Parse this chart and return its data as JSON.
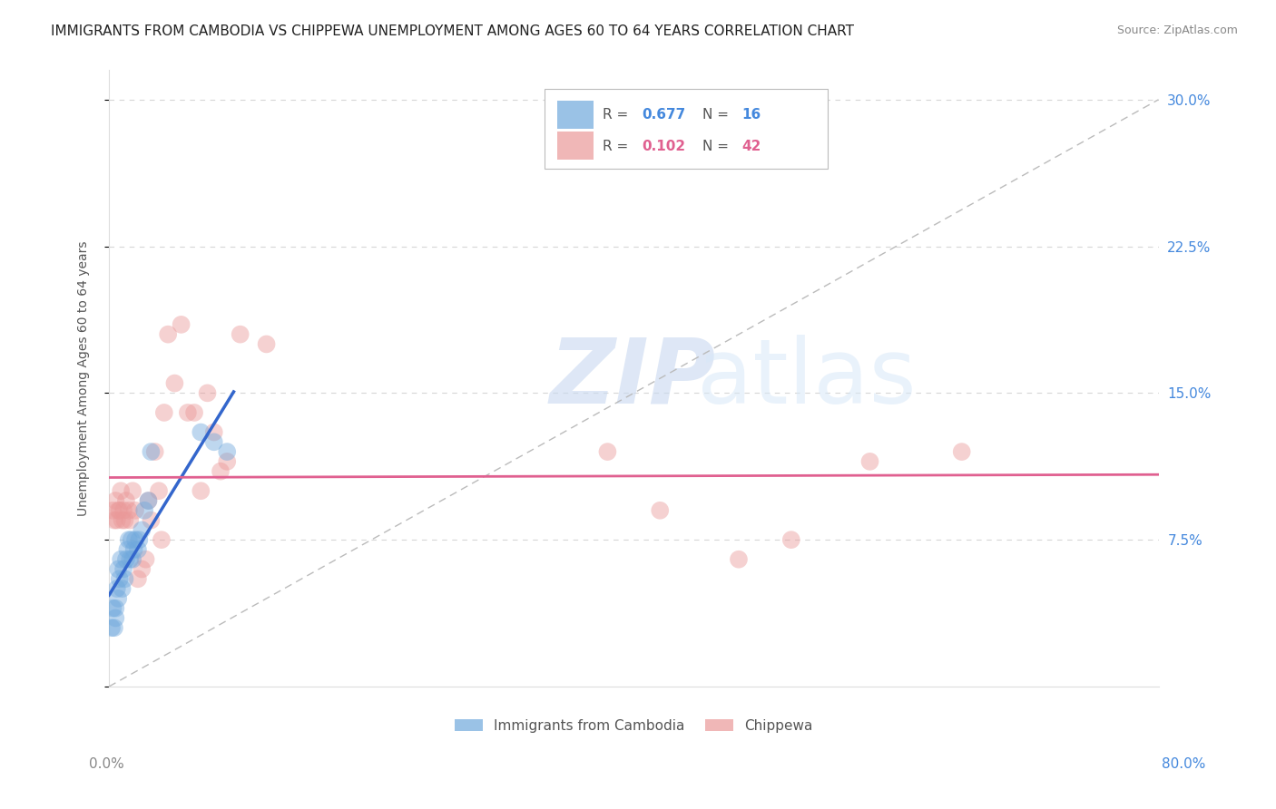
{
  "title": "IMMIGRANTS FROM CAMBODIA VS CHIPPEWA UNEMPLOYMENT AMONG AGES 60 TO 64 YEARS CORRELATION CHART",
  "source": "Source: ZipAtlas.com",
  "ylabel": "Unemployment Among Ages 60 to 64 years",
  "yticks": [
    0.0,
    0.075,
    0.15,
    0.225,
    0.3
  ],
  "ytick_labels": [
    "",
    "7.5%",
    "15.0%",
    "22.5%",
    "30.0%"
  ],
  "xlim": [
    0.0,
    0.8
  ],
  "ylim": [
    0.0,
    0.315
  ],
  "legend_label_blue": "Immigrants from Cambodia",
  "legend_label_pink": "Chippewa",
  "blue_color": "#6fa8dc",
  "pink_color": "#ea9999",
  "blue_line_color": "#3366cc",
  "pink_line_color": "#e06090",
  "watermark_zip": "ZIP",
  "watermark_atlas": "atlas",
  "blue_scatter_x": [
    0.002,
    0.003,
    0.004,
    0.005,
    0.005,
    0.006,
    0.007,
    0.007,
    0.008,
    0.009,
    0.01,
    0.011,
    0.012,
    0.013,
    0.014,
    0.015,
    0.016,
    0.017,
    0.018,
    0.019,
    0.02,
    0.022,
    0.023,
    0.025,
    0.027,
    0.03,
    0.032,
    0.07,
    0.08,
    0.09
  ],
  "blue_scatter_y": [
    0.03,
    0.04,
    0.03,
    0.035,
    0.04,
    0.05,
    0.045,
    0.06,
    0.055,
    0.065,
    0.05,
    0.06,
    0.055,
    0.065,
    0.07,
    0.075,
    0.065,
    0.075,
    0.065,
    0.07,
    0.075,
    0.07,
    0.075,
    0.08,
    0.09,
    0.095,
    0.12,
    0.13,
    0.125,
    0.12
  ],
  "pink_scatter_x": [
    0.003,
    0.004,
    0.005,
    0.006,
    0.007,
    0.008,
    0.009,
    0.01,
    0.011,
    0.012,
    0.013,
    0.015,
    0.016,
    0.018,
    0.02,
    0.022,
    0.025,
    0.028,
    0.03,
    0.032,
    0.035,
    0.038,
    0.04,
    0.042,
    0.045,
    0.05,
    0.055,
    0.06,
    0.065,
    0.07,
    0.075,
    0.08,
    0.085,
    0.09,
    0.1,
    0.12,
    0.38,
    0.42,
    0.48,
    0.52,
    0.58,
    0.65
  ],
  "pink_scatter_y": [
    0.09,
    0.085,
    0.095,
    0.085,
    0.09,
    0.09,
    0.1,
    0.085,
    0.09,
    0.085,
    0.095,
    0.09,
    0.085,
    0.1,
    0.09,
    0.055,
    0.06,
    0.065,
    0.095,
    0.085,
    0.12,
    0.1,
    0.075,
    0.14,
    0.18,
    0.155,
    0.185,
    0.14,
    0.14,
    0.1,
    0.15,
    0.13,
    0.11,
    0.115,
    0.18,
    0.175,
    0.12,
    0.09,
    0.065,
    0.075,
    0.115,
    0.12
  ],
  "title_fontsize": 11,
  "source_fontsize": 9,
  "axis_label_fontsize": 10,
  "tick_fontsize": 11,
  "scatter_size": 200,
  "scatter_alpha": 0.45,
  "grid_color": "#cccccc",
  "background_color": "#ffffff",
  "dashed_line_color": "#bbbbbb"
}
